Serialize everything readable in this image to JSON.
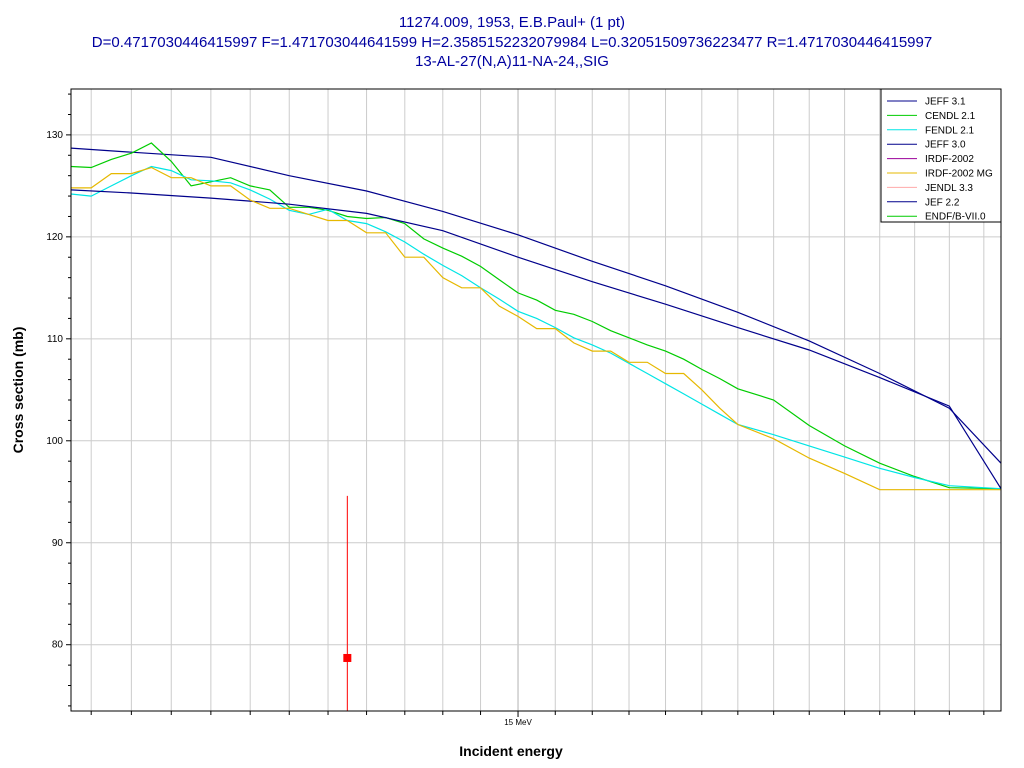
{
  "title_lines": [
    "11274.009, 1953, E.B.Paul+ (1 pt)",
    "D=0.4717030446415997 F=1.471703044641599 H=2.3585152232079984 L=0.32051509736223477 R=1.4717030446415997",
    "13-AL-27(N,A)11-NA-24,,SIG"
  ],
  "chart_data": {
    "type": "line",
    "xlabel": "Incident energy",
    "ylabel": "Cross section (mb)",
    "xlim": [
      13.85,
      16.35
    ],
    "ylim": [
      73.5,
      134.5
    ],
    "x_scale": "log",
    "x_tick_labels": [
      {
        "x": 15.0,
        "label": "15 MeV"
      }
    ],
    "y_ticks": [
      80,
      90,
      100,
      110,
      120,
      130
    ],
    "grid": true,
    "legend_position": "top-right",
    "colors": {
      "title": "#0000a0",
      "grid": "#cccccc",
      "data_point": "#ff0000"
    },
    "series": [
      {
        "name": "JEFF 3.1",
        "color": "#00008b",
        "x": [
          13.85,
          14.0,
          14.2,
          14.4,
          14.6,
          14.8,
          15.0,
          15.2,
          15.4,
          15.6,
          15.8,
          16.0,
          16.2,
          16.35
        ],
        "y": [
          128.7,
          128.3,
          127.8,
          126.0,
          124.5,
          122.5,
          120.2,
          117.6,
          115.2,
          112.6,
          109.8,
          106.6,
          103.2,
          97.8
        ]
      },
      {
        "name": "CENDL 2.1",
        "color": "#00cc00",
        "x": [
          13.85,
          13.9,
          13.95,
          14.0,
          14.05,
          14.1,
          14.15,
          14.2,
          14.25,
          14.3,
          14.35,
          14.4,
          14.45,
          14.5,
          14.55,
          14.6,
          14.65,
          14.7,
          14.75,
          14.8,
          14.85,
          14.9,
          14.95,
          15.0,
          15.05,
          15.1,
          15.15,
          15.2,
          15.25,
          15.3,
          15.35,
          15.4,
          15.45,
          15.5,
          15.55,
          15.6,
          15.7,
          15.8,
          15.9,
          16.0,
          16.1,
          16.2,
          16.35
        ],
        "y": [
          126.9,
          126.8,
          127.6,
          128.2,
          129.2,
          127.4,
          125.0,
          125.4,
          125.8,
          125.0,
          124.6,
          122.9,
          122.9,
          122.6,
          122.0,
          121.8,
          121.9,
          121.3,
          119.8,
          118.9,
          118.1,
          117.1,
          115.8,
          114.5,
          113.8,
          112.8,
          112.4,
          111.7,
          110.8,
          110.1,
          109.4,
          108.8,
          108.0,
          107.0,
          106.1,
          105.1,
          104.0,
          101.5,
          99.5,
          97.8,
          96.5,
          95.4,
          95.3
        ]
      },
      {
        "name": "FENDL 2.1",
        "color": "#00e5e5",
        "x": [
          13.85,
          13.9,
          13.95,
          14.0,
          14.05,
          14.1,
          14.15,
          14.2,
          14.25,
          14.3,
          14.35,
          14.4,
          14.45,
          14.5,
          14.55,
          14.6,
          14.65,
          14.7,
          14.75,
          14.8,
          14.85,
          14.9,
          14.95,
          15.0,
          15.05,
          15.1,
          15.15,
          15.2,
          15.25,
          15.3,
          15.35,
          15.4,
          15.45,
          15.5,
          15.55,
          15.6,
          15.7,
          15.8,
          15.9,
          16.0,
          16.1,
          16.2,
          16.35
        ],
        "y": [
          124.2,
          124.0,
          125.0,
          126.0,
          126.9,
          126.5,
          125.6,
          125.5,
          125.3,
          124.6,
          123.7,
          122.6,
          122.2,
          122.7,
          121.6,
          121.3,
          120.5,
          119.5,
          118.3,
          117.2,
          116.2,
          115.0,
          113.9,
          112.7,
          112.0,
          111.1,
          110.1,
          109.4,
          108.6,
          107.6,
          106.6,
          105.6,
          104.6,
          103.6,
          102.6,
          101.6,
          100.6,
          99.5,
          98.4,
          97.3,
          96.4,
          95.6,
          95.3
        ]
      },
      {
        "name": "JEFF 3.0",
        "color": "#00008b",
        "x": [
          13.85,
          14.0,
          14.2,
          14.4,
          14.6,
          14.8,
          15.0,
          15.2,
          15.4,
          15.6,
          15.8,
          16.0,
          16.2,
          16.35
        ],
        "y": [
          124.6,
          124.3,
          123.8,
          123.2,
          122.3,
          120.6,
          118.0,
          115.6,
          113.4,
          111.1,
          108.9,
          106.2,
          103.4,
          95.3
        ]
      },
      {
        "name": "IRDF-2002",
        "color": "#990099",
        "x": [],
        "y": []
      },
      {
        "name": "IRDF-2002 MG",
        "color": "#e6b800",
        "x": [
          13.85,
          13.9,
          13.95,
          14.0,
          14.05,
          14.1,
          14.15,
          14.2,
          14.25,
          14.3,
          14.35,
          14.4,
          14.45,
          14.5,
          14.55,
          14.6,
          14.65,
          14.7,
          14.75,
          14.8,
          14.85,
          14.9,
          14.95,
          15.0,
          15.05,
          15.1,
          15.15,
          15.2,
          15.25,
          15.3,
          15.35,
          15.4,
          15.45,
          15.5,
          15.55,
          15.6,
          15.7,
          15.8,
          15.9,
          16.0,
          16.1,
          16.2,
          16.35
        ],
        "y": [
          124.8,
          124.8,
          126.2,
          126.2,
          126.8,
          125.8,
          125.8,
          125.0,
          125.0,
          123.6,
          122.8,
          122.8,
          122.2,
          121.6,
          121.6,
          120.4,
          120.4,
          118.0,
          118.0,
          116.0,
          115.0,
          115.0,
          113.2,
          112.2,
          111.0,
          111.0,
          109.6,
          108.8,
          108.8,
          107.7,
          107.7,
          106.6,
          106.6,
          105.0,
          103.2,
          101.6,
          100.2,
          98.3,
          96.8,
          95.2,
          95.2,
          95.2,
          95.2
        ]
      },
      {
        "name": "JENDL 3.3",
        "color": "#ffaaaa",
        "x": [],
        "y": []
      },
      {
        "name": "JEF 2.2",
        "color": "#00008b",
        "x": [],
        "y": []
      },
      {
        "name": "ENDF/B-VII.0",
        "color": "#00cc00",
        "x": [],
        "y": []
      }
    ],
    "experimental_points": [
      {
        "x": 14.55,
        "y": 78.7,
        "y_err_low": 70.0,
        "y_err_high": 94.6
      }
    ]
  }
}
